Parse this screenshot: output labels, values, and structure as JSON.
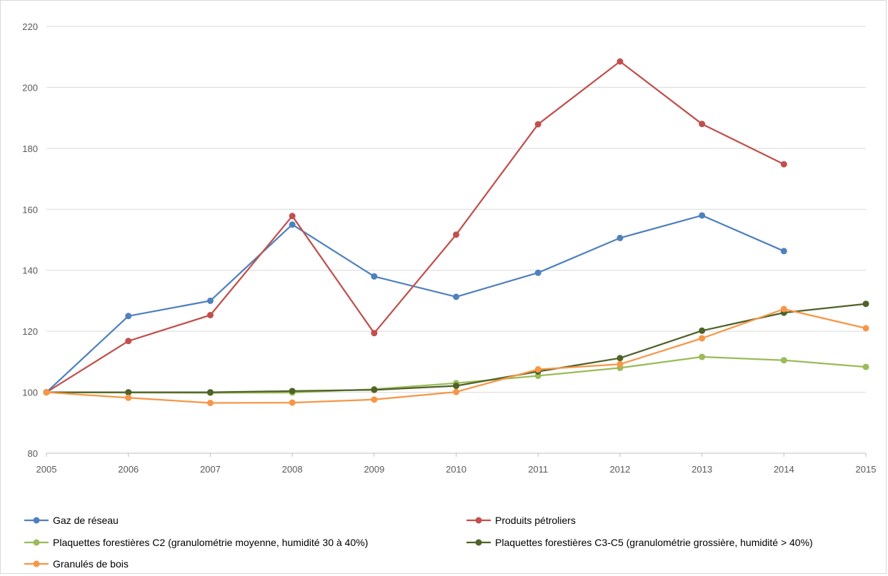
{
  "chart_data": {
    "type": "line",
    "title": "",
    "xlabel": "",
    "ylabel": "",
    "ylim": [
      80,
      220
    ],
    "yticks": [
      80,
      100,
      120,
      140,
      160,
      180,
      200,
      220
    ],
    "x": [
      2005,
      2006,
      2007,
      2008,
      2009,
      2010,
      2011,
      2012,
      2013,
      2014,
      2015
    ],
    "xtick_labels": [
      "2005",
      "2006",
      "2007",
      "2008",
      "2009",
      "2010",
      "2011",
      "2012",
      "2013",
      "2014",
      "2015"
    ],
    "grid": "horizontal",
    "legend_position": "bottom",
    "series": [
      {
        "name": "Gaz de réseau",
        "color": "#4f81bd",
        "values": [
          100,
          125,
          130,
          155,
          138,
          131.3,
          139.2,
          150.6,
          158,
          146.3,
          null
        ]
      },
      {
        "name": "Produits pétroliers",
        "color": "#c0504d",
        "values": [
          100,
          116.8,
          125.3,
          157.8,
          119.4,
          151.7,
          187.9,
          208.5,
          188,
          174.8,
          null
        ]
      },
      {
        "name": "Plaquettes forestières C2  (granulométrie moyenne, humidité 30 à 40%)",
        "color": "#9bbb59",
        "values": [
          100,
          99.9,
          99.8,
          99.9,
          101,
          103,
          105.4,
          108,
          111.6,
          110.5,
          108.3
        ]
      },
      {
        "name": "Plaquettes forestières C3-C5 (granulométrie grossière, humidité > 40%)",
        "color": "#4f6228",
        "values": [
          100,
          100,
          100,
          100.4,
          100.8,
          102.1,
          106.8,
          111.2,
          120.2,
          126.1,
          129
        ]
      },
      {
        "name": "Granulés de bois",
        "color": "#f79646",
        "values": [
          100,
          98.2,
          96.5,
          96.6,
          97.6,
          100.1,
          107.5,
          109.2,
          117.7,
          127.3,
          121
        ]
      }
    ]
  }
}
